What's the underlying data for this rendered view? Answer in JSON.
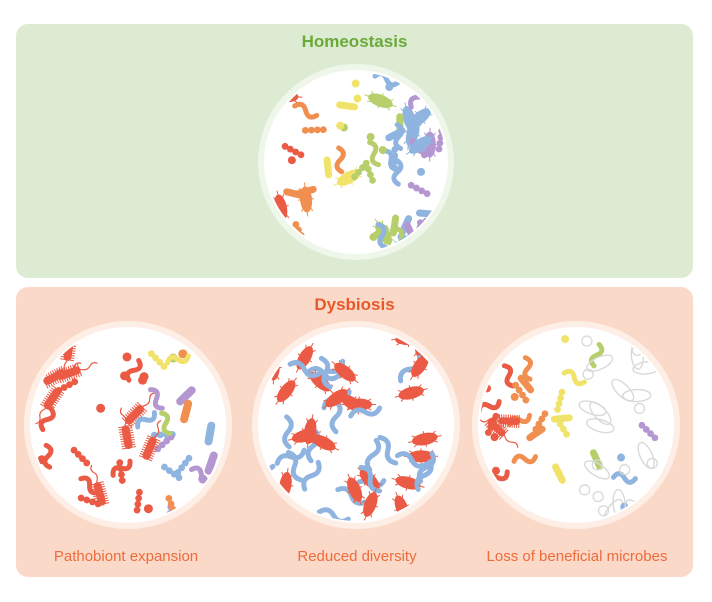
{
  "colors": {
    "homeostasis_bg": "#dcebd1",
    "homeostasis_title": "#6aaa3a",
    "dysbiosis_bg": "#fbd9c8",
    "dysbiosis_title": "#e8592a",
    "caption": "#ee6b3b",
    "pathobiont": "#ea5a44",
    "orange": "#f08f4f",
    "yellow": "#f1e36a",
    "green": "#b6cf6b",
    "blue": "#8fb4e0",
    "purple": "#b497d1",
    "ghost": "#d9d9d9"
  },
  "homeostasis": {
    "title": "Homeostasis"
  },
  "dysbiosis": {
    "title": "Dysbiosis",
    "panels": [
      {
        "caption": "Pathobiont expansion"
      },
      {
        "caption": "Reduced diversity"
      },
      {
        "caption": "Loss of beneficial microbes"
      }
    ]
  }
}
